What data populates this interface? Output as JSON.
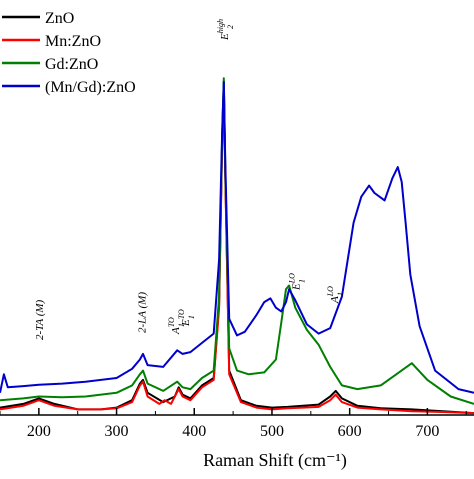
{
  "chart_data": {
    "type": "line",
    "title": "",
    "xlabel": "Raman Shift (cm⁻¹)",
    "ylabel": "",
    "xlim": [
      150,
      760
    ],
    "ylim": [
      0,
      1000
    ],
    "xticks": [
      200,
      300,
      400,
      500,
      600,
      700
    ],
    "xtick_labels": [
      "200",
      "300",
      "400",
      "500",
      "600",
      "700"
    ],
    "grid": false,
    "legend": "top-left",
    "series": [
      {
        "name": "ZnO",
        "color": "#000000",
        "x": [
          150,
          180,
          200,
          220,
          250,
          280,
          300,
          320,
          330,
          334,
          340,
          360,
          375,
          380,
          385,
          395,
          410,
          425,
          432,
          436,
          438,
          440,
          445,
          460,
          480,
          500,
          520,
          540,
          560,
          575,
          582,
          590,
          610,
          640,
          680,
          720,
          760
        ],
        "y": [
          20,
          30,
          45,
          30,
          15,
          15,
          20,
          40,
          85,
          95,
          60,
          35,
          50,
          75,
          55,
          45,
          80,
          100,
          300,
          750,
          900,
          650,
          120,
          40,
          25,
          20,
          22,
          25,
          28,
          50,
          65,
          45,
          25,
          18,
          15,
          10,
          5
        ]
      },
      {
        "name": "Mn:ZnO",
        "color": "#ff0000",
        "x": [
          150,
          180,
          200,
          220,
          250,
          280,
          300,
          320,
          330,
          334,
          340,
          355,
          362,
          370,
          380,
          385,
          395,
          410,
          425,
          432,
          436,
          438,
          440,
          445,
          460,
          480,
          500,
          520,
          540,
          560,
          575,
          582,
          590,
          610,
          640,
          680,
          720,
          760
        ],
        "y": [
          15,
          25,
          40,
          25,
          15,
          15,
          18,
          35,
          80,
          90,
          50,
          30,
          40,
          30,
          70,
          50,
          40,
          75,
          95,
          290,
          740,
          880,
          640,
          110,
          35,
          20,
          15,
          18,
          20,
          22,
          40,
          55,
          35,
          20,
          15,
          10,
          8,
          5
        ]
      },
      {
        "name": "Gd:ZnO",
        "color": "#008000",
        "x": [
          150,
          180,
          200,
          230,
          260,
          300,
          320,
          330,
          334,
          340,
          360,
          378,
          385,
          395,
          410,
          425,
          432,
          436,
          438,
          440,
          445,
          455,
          470,
          490,
          505,
          512,
          518,
          522,
          530,
          545,
          560,
          575,
          590,
          610,
          640,
          660,
          680,
          700,
          730,
          760
        ],
        "y": [
          40,
          45,
          50,
          48,
          50,
          60,
          80,
          110,
          120,
          85,
          65,
          90,
          75,
          70,
          100,
          120,
          320,
          760,
          910,
          660,
          180,
          120,
          110,
          115,
          150,
          250,
          340,
          350,
          290,
          230,
          190,
          130,
          80,
          70,
          80,
          110,
          140,
          95,
          50,
          30
        ]
      },
      {
        "name": "(Mn/Gd):ZnO",
        "color": "#0000cd",
        "x": [
          150,
          155,
          160,
          180,
          200,
          230,
          260,
          300,
          320,
          330,
          334,
          340,
          360,
          378,
          385,
          395,
          410,
          425,
          432,
          436,
          438,
          440,
          445,
          455,
          465,
          480,
          490,
          498,
          505,
          512,
          518,
          522,
          530,
          545,
          560,
          575,
          590,
          605,
          615,
          625,
          632,
          645,
          655,
          662,
          667,
          672,
          678,
          690,
          710,
          740,
          760
        ],
        "y": [
          60,
          110,
          75,
          78,
          82,
          85,
          90,
          100,
          125,
          150,
          165,
          135,
          130,
          175,
          165,
          170,
          195,
          220,
          420,
          770,
          900,
          680,
          260,
          215,
          225,
          270,
          305,
          315,
          290,
          280,
          305,
          340,
          310,
          245,
          220,
          235,
          320,
          520,
          590,
          620,
          600,
          580,
          640,
          670,
          630,
          520,
          380,
          240,
          120,
          70,
          60
        ]
      }
    ],
    "annotations": [
      {
        "base": "2-TA (M)",
        "sup": "",
        "sub": "",
        "x": 200
      },
      {
        "base": "2-LA (M)",
        "sup": "",
        "sub": "",
        "x": 332
      },
      {
        "base": "A",
        "sup": "TO",
        "sub": "1",
        "x": 375
      },
      {
        "base": "E",
        "sup": "TO",
        "sub": "1",
        "x": 388
      },
      {
        "base": "E",
        "sup": "high",
        "sub": "2",
        "x": 438
      },
      {
        "base": "E",
        "sup": "LO",
        "sub": "1",
        "x": 530
      },
      {
        "base": "A",
        "sup": "LO",
        "sub": "1",
        "x": 580
      }
    ]
  }
}
